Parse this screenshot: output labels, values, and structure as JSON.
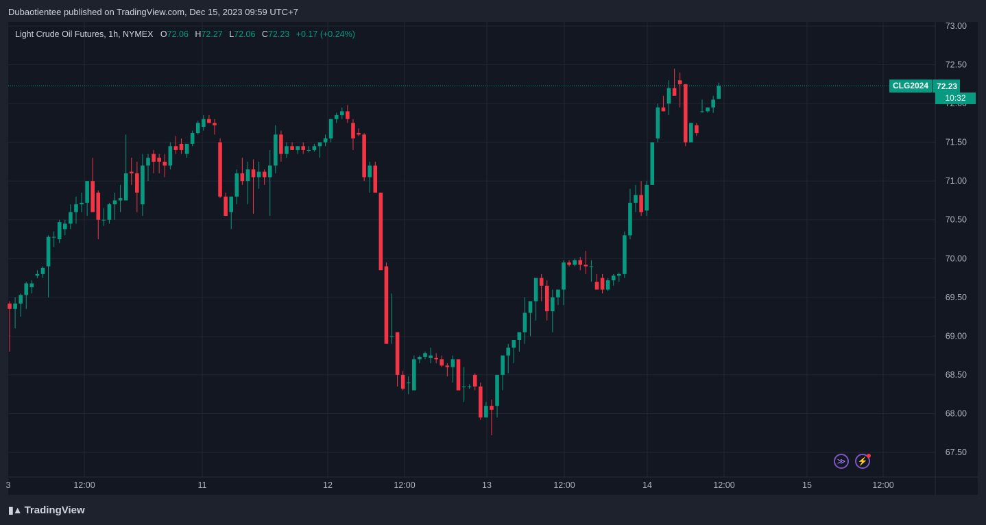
{
  "header": {
    "published": "Dubaotientee published on TradingView.com, Dec 15, 2023 09:59 UTC+7"
  },
  "legend": {
    "symbol": "Light Crude Oil Futures, 1h, NYMEX",
    "o_label": "O",
    "o": "72.06",
    "h_label": "H",
    "h": "72.27",
    "l_label": "L",
    "l": "72.06",
    "c_label": "C",
    "c": "72.23",
    "change": "+0.17 (+0.24%)"
  },
  "price_tag": {
    "symbol": "CLG2024",
    "price": "72.23",
    "countdown": "10:32"
  },
  "footer": {
    "brand": "TradingView"
  },
  "icons": [
    "replay-icon",
    "lightning-icon",
    "tradingview-logo-icon"
  ],
  "colors": {
    "up": "#089981",
    "down": "#f23645",
    "background": "#131722",
    "grid": "#232733"
  },
  "chart_data": {
    "type": "candlestick",
    "title": "Light Crude Oil Futures, 1h, NYMEX",
    "ylim": [
      67.3,
      73.05
    ],
    "y_ticks": [
      "73.00",
      "72.50",
      "72.00",
      "71.50",
      "71.00",
      "70.50",
      "70.00",
      "69.50",
      "69.00",
      "68.50",
      "68.00",
      "67.50"
    ],
    "x_ticks": [
      "3",
      "12:00",
      "11",
      "12",
      "12:00",
      "13",
      "12:00",
      "14",
      "12:00",
      "15",
      "12:00"
    ],
    "last_price": 72.23,
    "candles": [
      [
        69.42,
        69.45,
        68.8,
        69.35
      ],
      [
        69.35,
        69.5,
        69.1,
        69.42
      ],
      [
        69.42,
        69.55,
        69.25,
        69.53
      ],
      [
        69.53,
        69.7,
        69.35,
        69.68
      ],
      [
        69.63,
        69.72,
        69.55,
        69.68
      ],
      [
        69.78,
        69.85,
        69.75,
        69.8
      ],
      [
        69.8,
        69.9,
        69.75,
        69.88
      ],
      [
        69.9,
        70.3,
        69.5,
        70.28
      ],
      [
        70.28,
        70.35,
        70.15,
        70.28
      ],
      [
        70.25,
        70.5,
        70.2,
        70.47
      ],
      [
        70.38,
        70.5,
        70.3,
        70.45
      ],
      [
        70.45,
        70.7,
        70.38,
        70.6
      ],
      [
        70.6,
        70.8,
        70.45,
        70.7
      ],
      [
        70.7,
        70.85,
        70.6,
        70.72
      ],
      [
        70.72,
        71.0,
        70.55,
        71.0
      ],
      [
        71.0,
        71.3,
        70.6,
        70.6
      ],
      [
        70.85,
        70.88,
        70.25,
        70.5
      ],
      [
        70.5,
        70.65,
        70.42,
        70.5
      ],
      [
        70.5,
        70.72,
        70.45,
        70.7
      ],
      [
        70.7,
        70.85,
        70.5,
        70.75
      ],
      [
        70.75,
        70.95,
        70.6,
        70.78
      ],
      [
        70.75,
        71.6,
        70.75,
        71.1
      ],
      [
        71.12,
        71.3,
        70.95,
        71.1
      ],
      [
        71.1,
        71.25,
        70.6,
        70.85
      ],
      [
        70.7,
        71.35,
        70.55,
        71.2
      ],
      [
        71.2,
        71.35,
        71.0,
        71.3
      ],
      [
        71.35,
        71.4,
        71.1,
        71.25
      ],
      [
        71.3,
        71.35,
        71.1,
        71.25
      ],
      [
        71.25,
        71.35,
        71.05,
        71.2
      ],
      [
        71.2,
        71.5,
        71.15,
        71.45
      ],
      [
        71.45,
        71.58,
        71.35,
        71.4
      ],
      [
        71.48,
        71.55,
        71.35,
        71.4
      ],
      [
        71.35,
        71.48,
        71.3,
        71.48
      ],
      [
        71.48,
        71.65,
        71.45,
        71.62
      ],
      [
        71.62,
        71.78,
        71.6,
        71.75
      ],
      [
        71.7,
        71.85,
        71.65,
        71.8
      ],
      [
        71.8,
        71.85,
        71.75,
        71.75
      ],
      [
        71.75,
        71.8,
        71.6,
        71.72
      ],
      [
        71.5,
        71.55,
        70.78,
        70.8
      ],
      [
        70.8,
        70.85,
        70.55,
        70.55
      ],
      [
        70.6,
        70.8,
        70.38,
        70.8
      ],
      [
        70.8,
        71.15,
        70.7,
        71.1
      ],
      [
        71.1,
        71.3,
        70.95,
        71.0
      ],
      [
        71.0,
        71.25,
        70.7,
        71.15
      ],
      [
        71.15,
        71.28,
        70.58,
        71.05
      ],
      [
        71.05,
        71.25,
        70.9,
        71.12
      ],
      [
        71.12,
        71.15,
        70.95,
        71.05
      ],
      [
        71.05,
        71.4,
        70.55,
        71.2
      ],
      [
        71.2,
        71.72,
        71.1,
        71.6
      ],
      [
        71.6,
        71.65,
        71.25,
        71.35
      ],
      [
        71.35,
        71.5,
        71.3,
        71.45
      ],
      [
        71.45,
        71.5,
        71.4,
        71.4
      ],
      [
        71.4,
        71.45,
        71.35,
        71.45
      ],
      [
        71.45,
        71.5,
        71.35,
        71.4
      ],
      [
        71.4,
        71.45,
        71.37,
        71.4
      ],
      [
        71.4,
        71.48,
        71.38,
        71.45
      ],
      [
        71.45,
        71.5,
        71.3,
        71.5
      ],
      [
        71.5,
        71.6,
        71.45,
        71.55
      ],
      [
        71.55,
        71.8,
        71.5,
        71.8
      ],
      [
        71.8,
        71.88,
        71.75,
        71.85
      ],
      [
        71.85,
        71.95,
        71.8,
        71.9
      ],
      [
        71.9,
        71.98,
        71.75,
        71.8
      ],
      [
        71.75,
        71.8,
        71.4,
        71.55
      ],
      [
        71.62,
        71.68,
        71.58,
        71.6
      ],
      [
        71.6,
        71.62,
        71.0,
        71.05
      ],
      [
        71.05,
        71.25,
        70.85,
        71.2
      ],
      [
        71.2,
        71.25,
        70.85,
        70.85
      ],
      [
        70.85,
        70.85,
        69.85,
        69.85
      ],
      [
        69.9,
        69.95,
        68.9,
        68.9
      ],
      [
        69.0,
        69.55,
        68.9,
        69.0
      ],
      [
        69.05,
        69.05,
        68.35,
        68.5
      ],
      [
        68.5,
        68.55,
        68.3,
        68.32
      ],
      [
        68.4,
        68.48,
        68.25,
        68.4
      ],
      [
        68.3,
        68.75,
        68.3,
        68.7
      ],
      [
        68.7,
        68.75,
        68.65,
        68.73
      ],
      [
        68.73,
        68.8,
        68.7,
        68.78
      ],
      [
        68.72,
        68.85,
        68.65,
        68.75
      ],
      [
        68.72,
        68.78,
        68.65,
        68.7
      ],
      [
        68.7,
        68.75,
        68.6,
        68.62
      ],
      [
        68.62,
        68.65,
        68.48,
        68.6
      ],
      [
        68.6,
        68.75,
        68.4,
        68.7
      ],
      [
        68.7,
        68.7,
        68.3,
        68.3
      ],
      [
        68.35,
        68.6,
        68.15,
        68.35
      ],
      [
        68.35,
        68.38,
        68.32,
        68.35
      ],
      [
        68.5,
        68.52,
        68.3,
        68.35
      ],
      [
        68.35,
        68.4,
        67.92,
        67.95
      ],
      [
        67.95,
        68.15,
        67.95,
        68.1
      ],
      [
        68.1,
        68.18,
        67.72,
        68.05
      ],
      [
        68.1,
        68.5,
        67.95,
        68.5
      ],
      [
        68.5,
        68.75,
        68.3,
        68.75
      ],
      [
        68.75,
        68.9,
        68.52,
        68.85
      ],
      [
        68.85,
        68.95,
        68.65,
        68.95
      ],
      [
        68.95,
        69.0,
        68.8,
        69.05
      ],
      [
        69.05,
        69.5,
        68.9,
        69.3
      ],
      [
        69.3,
        69.45,
        69.0,
        69.45
      ],
      [
        69.45,
        69.7,
        69.2,
        69.75
      ],
      [
        69.75,
        69.8,
        69.45,
        69.65
      ],
      [
        69.65,
        69.72,
        69.2,
        69.32
      ],
      [
        69.32,
        69.6,
        69.05,
        69.5
      ],
      [
        69.5,
        69.55,
        69.4,
        69.6
      ],
      [
        69.6,
        69.98,
        69.4,
        69.95
      ],
      [
        69.95,
        69.98,
        69.9,
        69.92
      ],
      [
        69.92,
        70.0,
        69.9,
        69.98
      ],
      [
        69.98,
        70.02,
        69.85,
        69.92
      ],
      [
        69.92,
        70.1,
        69.8,
        69.9
      ],
      [
        69.9,
        69.98,
        69.7,
        69.9
      ],
      [
        69.7,
        69.8,
        69.6,
        69.6
      ],
      [
        69.75,
        69.8,
        69.55,
        69.6
      ],
      [
        69.6,
        69.75,
        69.58,
        69.72
      ],
      [
        69.72,
        69.8,
        69.65,
        69.78
      ],
      [
        69.78,
        69.82,
        69.7,
        69.8
      ],
      [
        69.8,
        70.35,
        69.75,
        70.3
      ],
      [
        70.3,
        70.9,
        70.25,
        70.72
      ],
      [
        70.72,
        70.95,
        70.6,
        70.82
      ],
      [
        70.82,
        71.0,
        70.55,
        70.6
      ],
      [
        70.62,
        71.0,
        70.55,
        70.95
      ],
      [
        70.95,
        71.5,
        70.95,
        71.5
      ],
      [
        71.55,
        72.0,
        71.5,
        71.95
      ],
      [
        71.95,
        72.1,
        71.9,
        71.9
      ],
      [
        72.0,
        72.3,
        71.85,
        72.2
      ],
      [
        72.2,
        72.45,
        72.15,
        72.1
      ],
      [
        72.3,
        72.4,
        71.95,
        72.25
      ],
      [
        72.25,
        72.25,
        71.45,
        71.5
      ],
      [
        71.5,
        71.75,
        71.5,
        71.75
      ],
      [
        71.72,
        71.75,
        71.58,
        71.62
      ],
      [
        71.9,
        72.05,
        71.88,
        71.9
      ],
      [
        71.9,
        71.95,
        71.88,
        71.95
      ],
      [
        71.95,
        72.1,
        71.88,
        72.05
      ],
      [
        72.06,
        72.27,
        72.06,
        72.23
      ]
    ]
  }
}
